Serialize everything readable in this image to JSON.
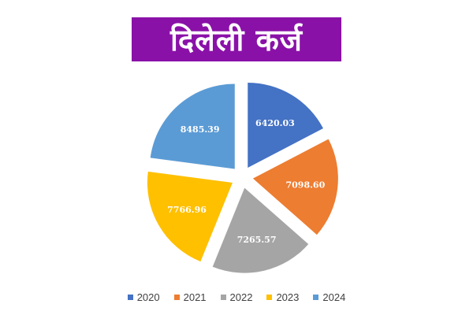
{
  "chart_data": {
    "type": "pie",
    "title": "दिलेली कर्ज",
    "categories": [
      "2020",
      "2021",
      "2022",
      "2023",
      "2024"
    ],
    "values": [
      6420.03,
      7098.6,
      7265.57,
      7766.96,
      8485.39
    ],
    "value_labels": [
      "6420.03",
      "7098.60",
      "7265.57",
      "7766.96",
      "8485.39"
    ],
    "colors": [
      "#4472c4",
      "#ed7d31",
      "#a5a5a5",
      "#ffc000",
      "#5b9bd5"
    ],
    "exploded": true,
    "legend_position": "bottom"
  }
}
